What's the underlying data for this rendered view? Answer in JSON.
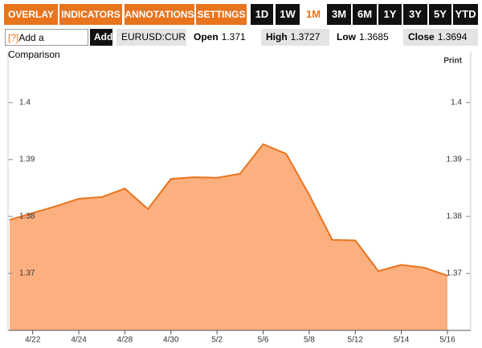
{
  "toolbar": {
    "menus": [
      "OVERLAY",
      "INDICATORS",
      "ANNOTATIONS",
      "SETTINGS"
    ],
    "ranges": [
      "1D",
      "1W",
      "1M",
      "3M",
      "6M",
      "1Y",
      "3Y",
      "5Y",
      "YTD"
    ],
    "active_range": 2
  },
  "info_bar": {
    "help": "[?]",
    "comparison_placeholder": "Add a Comparison",
    "add_button": "Add",
    "symbol": "EURUSD:CUR",
    "quotes": [
      {
        "label": "Open",
        "value": 1.371
      },
      {
        "label": "High",
        "value": 1.3727
      },
      {
        "label": "Low",
        "value": 1.3685
      },
      {
        "label": "Close",
        "value": 1.3694
      }
    ]
  },
  "print": "Print",
  "chart_data": {
    "type": "area",
    "categories": [
      null,
      "4/22",
      null,
      "4/24",
      null,
      "4/28",
      null,
      "4/30",
      null,
      "5/2",
      null,
      "5/6",
      null,
      "5/8",
      null,
      "5/12",
      null,
      "5/14",
      null,
      "5/16"
    ],
    "values": [
      1.3794,
      1.3806,
      1.3818,
      1.3831,
      1.3834,
      1.3849,
      1.3813,
      1.3866,
      1.3869,
      1.3868,
      1.3875,
      1.3927,
      1.391,
      1.3838,
      1.3759,
      1.3758,
      1.3704,
      1.3715,
      1.371,
      1.3696
    ],
    "color": "#e8741e",
    "fill": "#fdb07f",
    "ylim": [
      1.36,
      1.409
    ],
    "yticks": [
      1.37,
      1.38,
      1.39,
      1.4
    ]
  }
}
